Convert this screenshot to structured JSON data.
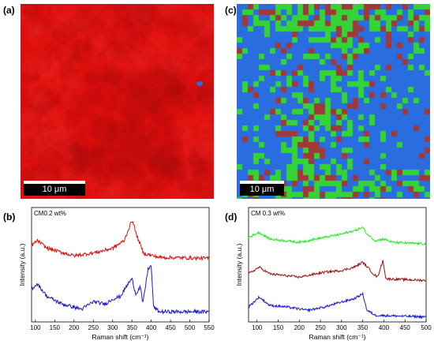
{
  "figure": {
    "panels": [
      {
        "letter": "(a)",
        "scale_label": "10 μm"
      },
      {
        "letter": "(c)",
        "scale_label": "10 μm"
      },
      {
        "letter": "(b)"
      },
      {
        "letter": "(d)"
      }
    ]
  },
  "colors": {
    "map_red": "#e2100d",
    "map_blue": "#2a6de0",
    "map_green": "#33d433",
    "map_maroon": "#a03a3a",
    "line_red": "#dd1111",
    "line_blue": "#1a1acc",
    "line_green": "#22ee22",
    "line_darkred": "#991111"
  },
  "chart_data": [
    {
      "type": "line",
      "annotation": "CM0.2 wt%",
      "xlabel": "Raman shift (cm⁻¹)",
      "ylabel": "Intensity (a.u.)",
      "xlim": [
        90,
        550
      ],
      "xticks": [
        100,
        150,
        200,
        250,
        300,
        350,
        400,
        450,
        500,
        550
      ],
      "series": [
        {
          "color": "red",
          "offset": 1.1,
          "baseline": [
            [
              90,
              0.25
            ],
            [
              105,
              0.35
            ],
            [
              130,
              0.2
            ],
            [
              200,
              0.05
            ],
            [
              260,
              0.12
            ],
            [
              300,
              0.2
            ],
            [
              330,
              0.35
            ],
            [
              345,
              0.65
            ],
            [
              352,
              0.75
            ],
            [
              360,
              0.5
            ],
            [
              380,
              0.1
            ],
            [
              420,
              0.02
            ],
            [
              550,
              0.0
            ]
          ]
        },
        {
          "color": "blue",
          "offset": 0.0,
          "baseline": [
            [
              90,
              0.5
            ],
            [
              105,
              0.6
            ],
            [
              130,
              0.35
            ],
            [
              170,
              0.2
            ],
            [
              220,
              0.1
            ],
            [
              250,
              0.25
            ],
            [
              280,
              0.2
            ],
            [
              300,
              0.3
            ],
            [
              320,
              0.35
            ],
            [
              340,
              0.6
            ],
            [
              350,
              0.7
            ],
            [
              360,
              0.4
            ],
            [
              372,
              0.55
            ],
            [
              378,
              0.2
            ],
            [
              392,
              0.9
            ],
            [
              400,
              0.95
            ],
            [
              406,
              0.15
            ],
            [
              420,
              0.05
            ],
            [
              450,
              0.05
            ],
            [
              550,
              0.05
            ]
          ]
        }
      ]
    },
    {
      "type": "line",
      "annotation": "CM 0.3 wt%",
      "xlabel": "Raman shift (cm⁻¹)",
      "ylabel": "Intensity (a.u.)",
      "xlim": [
        80,
        500
      ],
      "xticks": [
        100,
        150,
        200,
        250,
        300,
        350,
        400,
        450,
        500
      ],
      "series": [
        {
          "color": "green",
          "offset": 2.2,
          "baseline": [
            [
              80,
              0.2
            ],
            [
              105,
              0.35
            ],
            [
              130,
              0.15
            ],
            [
              200,
              0.05
            ],
            [
              260,
              0.2
            ],
            [
              300,
              0.3
            ],
            [
              330,
              0.4
            ],
            [
              350,
              0.5
            ],
            [
              360,
              0.3
            ],
            [
              380,
              0.1
            ],
            [
              400,
              0.15
            ],
            [
              420,
              0.05
            ],
            [
              500,
              0.0
            ]
          ]
        },
        {
          "color": "darkred",
          "offset": 1.1,
          "baseline": [
            [
              80,
              0.2
            ],
            [
              105,
              0.4
            ],
            [
              130,
              0.2
            ],
            [
              200,
              0.1
            ],
            [
              260,
              0.25
            ],
            [
              300,
              0.3
            ],
            [
              330,
              0.4
            ],
            [
              350,
              0.55
            ],
            [
              365,
              0.35
            ],
            [
              375,
              0.2
            ],
            [
              385,
              0.1
            ],
            [
              398,
              0.6
            ],
            [
              405,
              0.05
            ],
            [
              500,
              0.0
            ]
          ]
        },
        {
          "color": "blue",
          "offset": 0.0,
          "baseline": [
            [
              80,
              0.3
            ],
            [
              105,
              0.6
            ],
            [
              130,
              0.35
            ],
            [
              170,
              0.3
            ],
            [
              220,
              0.2
            ],
            [
              260,
              0.3
            ],
            [
              300,
              0.45
            ],
            [
              330,
              0.55
            ],
            [
              350,
              0.7
            ],
            [
              360,
              0.2
            ],
            [
              380,
              0.05
            ],
            [
              500,
              0.0
            ]
          ]
        }
      ]
    }
  ]
}
